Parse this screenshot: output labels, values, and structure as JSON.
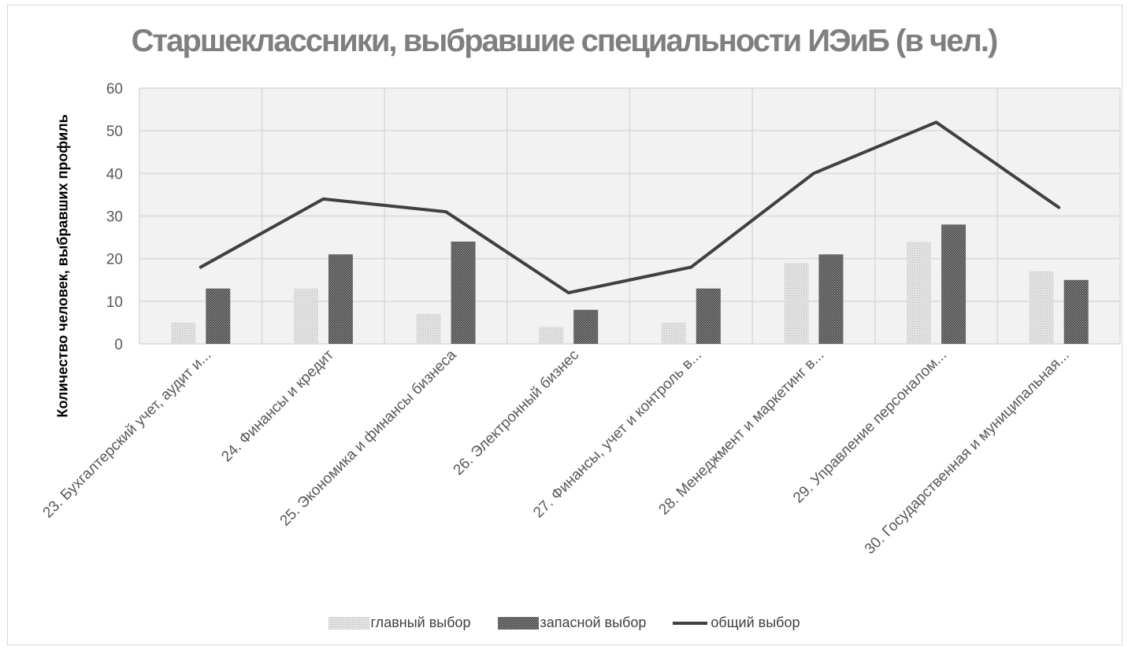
{
  "chart_data": {
    "type": "bar",
    "title": "Старшеклассники, выбравшие специальности ИЭиБ (в чел.)",
    "ylabel": "Количество человек, выбравших профиль",
    "xlabel": "",
    "ylim": [
      0,
      60
    ],
    "yticks": [
      0,
      10,
      20,
      30,
      40,
      50,
      60
    ],
    "grid": true,
    "legend_position": "bottom",
    "categories": [
      "23. Бухгалтерский учет, аудит и...",
      "24. Финансы и кредит",
      "25. Экономика и финансы бизнеса",
      "26. Электронный бизнес",
      "27. Финансы, учет и контроль в...",
      "28. Менеджмент и маркетинг в...",
      "29. Управление персоналом...",
      "30. Государственная и муниципальная..."
    ],
    "series": [
      {
        "name": "главный выбор",
        "type": "bar",
        "values": [
          5,
          13,
          7,
          4,
          5,
          19,
          24,
          17
        ],
        "color": "#d9d9d9"
      },
      {
        "name": "запасной выбор",
        "type": "bar",
        "values": [
          13,
          21,
          24,
          8,
          13,
          21,
          28,
          15
        ],
        "color": "#595959"
      },
      {
        "name": "общий выбор",
        "type": "line",
        "values": [
          18,
          34,
          31,
          12,
          18,
          40,
          52,
          32
        ],
        "color": "#404040"
      }
    ]
  }
}
